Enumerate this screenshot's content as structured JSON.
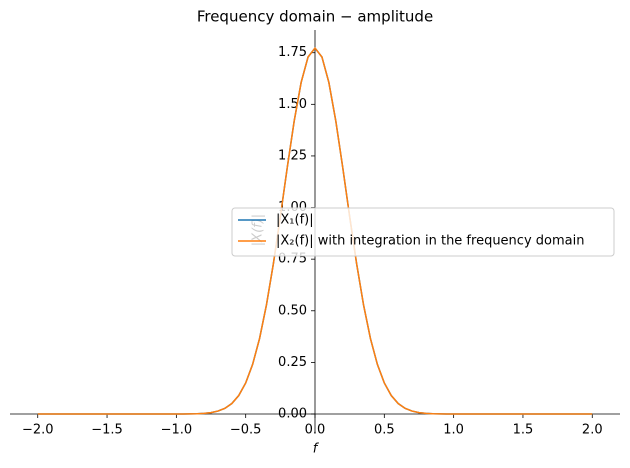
{
  "chart_data": {
    "type": "line",
    "title": "Frequency domain − amplitude",
    "x_label": "f",
    "y_label": "|X(f)|",
    "x": [
      -2,
      -1.5,
      -1.25,
      -1,
      -0.95,
      -0.9,
      -0.85,
      -0.8,
      -0.75,
      -0.7,
      -0.65,
      -0.6,
      -0.55,
      -0.5,
      -0.45,
      -0.4,
      -0.35,
      -0.3,
      -0.25,
      -0.2,
      -0.15,
      -0.1,
      -0.05,
      0,
      0.05,
      0.1,
      0.15,
      0.2,
      0.25,
      0.3,
      0.35,
      0.4,
      0.45,
      0.5,
      0.55,
      0.6,
      0.65,
      0.7,
      0.75,
      0.8,
      0.85,
      0.9,
      0.95,
      1,
      1.25,
      1.5,
      2
    ],
    "series": [
      {
        "name": "|X₁(f)|",
        "color": "#1f77b4",
        "values": [
          0,
          0,
          0,
          0.0001,
          0.0002,
          0.0006,
          0.0014,
          0.0032,
          0.0069,
          0.0141,
          0.0274,
          0.0507,
          0.0895,
          0.1503,
          0.2402,
          0.3654,
          0.5291,
          0.7291,
          0.9564,
          1.1943,
          1.4195,
          1.6059,
          1.7293,
          1.7725,
          1.7293,
          1.6059,
          1.4195,
          1.1943,
          0.9564,
          0.7291,
          0.5291,
          0.3654,
          0.2402,
          0.1503,
          0.0895,
          0.0507,
          0.0274,
          0.0141,
          0.0069,
          0.0032,
          0.0014,
          0.0006,
          0.0002,
          0.0001,
          0,
          0,
          0
        ]
      },
      {
        "name": "|X₂(f)| with integration in the frequency domain",
        "color": "#ff7f0e",
        "values": [
          0,
          0,
          0,
          0.0001,
          0.0002,
          0.0006,
          0.0014,
          0.0032,
          0.0069,
          0.0141,
          0.0274,
          0.0507,
          0.0895,
          0.1503,
          0.2402,
          0.3654,
          0.5291,
          0.7291,
          0.9564,
          1.1943,
          1.4195,
          1.6059,
          1.7293,
          1.7725,
          1.7293,
          1.6059,
          1.4195,
          1.1943,
          0.9564,
          0.7291,
          0.5291,
          0.3654,
          0.2402,
          0.1503,
          0.0895,
          0.0507,
          0.0274,
          0.0141,
          0.0069,
          0.0032,
          0.0014,
          0.0006,
          0.0002,
          0.0001,
          0,
          0,
          0
        ]
      }
    ],
    "xlim": [
      -2.2,
      2.2
    ],
    "ylim": [
      0,
      1.86
    ],
    "xticks": [
      {
        "value": -2,
        "label": "−2.0"
      },
      {
        "value": -1.5,
        "label": "−1.5"
      },
      {
        "value": -1,
        "label": "−1.0"
      },
      {
        "value": -0.5,
        "label": "−0.5"
      },
      {
        "value": 0,
        "label": "0.0"
      },
      {
        "value": 0.5,
        "label": "0.5"
      },
      {
        "value": 1,
        "label": "1.0"
      },
      {
        "value": 1.5,
        "label": "1.5"
      },
      {
        "value": 2,
        "label": "2.0"
      }
    ],
    "yticks": [
      {
        "value": 0,
        "label": "0.00"
      },
      {
        "value": 0.25,
        "label": "0.25"
      },
      {
        "value": 0.5,
        "label": "0.50"
      },
      {
        "value": 0.75,
        "label": "0.75"
      },
      {
        "value": 1,
        "label": "1.00"
      },
      {
        "value": 1.25,
        "label": "1.25"
      },
      {
        "value": 1.5,
        "label": "1.50"
      },
      {
        "value": 1.75,
        "label": "1.75"
      }
    ],
    "legend": "right",
    "grid": false
  }
}
